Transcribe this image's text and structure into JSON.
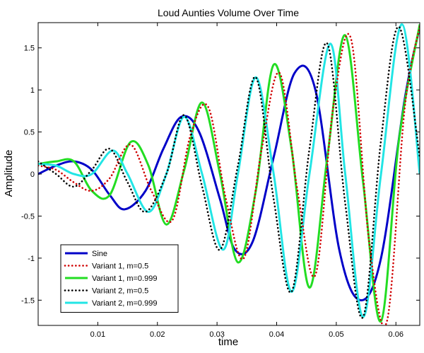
{
  "chart_data": {
    "type": "line",
    "title": "Loud Aunties Volume Over Time",
    "xlabel": "time",
    "ylabel": "Amplitude",
    "xlim": [
      0,
      0.064
    ],
    "ylim": [
      -1.8,
      1.8
    ],
    "xticks": [
      0.01,
      0.02,
      0.03,
      0.04,
      0.05,
      0.06
    ],
    "xtick_labels": [
      "0.01",
      "0.02",
      "0.03",
      "0.04",
      "0.05",
      "0.06"
    ],
    "yticks": [
      -1.5,
      -1,
      -0.5,
      0,
      0.5,
      1,
      1.5
    ],
    "ytick_labels": [
      "-1.5",
      "-1",
      "-0.5",
      "0",
      "0.5",
      "1",
      "1.5"
    ],
    "grid": false,
    "legend_position": "lower-left",
    "series": [
      {
        "name": "Sine",
        "color": "#0000c8",
        "style": "solid",
        "x": [
          0,
          0.003,
          0.006,
          0.009,
          0.012,
          0.0145,
          0.018,
          0.021,
          0.024,
          0.027,
          0.0305,
          0.033,
          0.036,
          0.0395,
          0.043,
          0.0465,
          0.0505,
          0.054,
          0.0575,
          0.0615,
          0.064
        ],
        "values": [
          0,
          0.1,
          0.15,
          0.05,
          -0.25,
          -0.42,
          -0.2,
          0.3,
          0.68,
          0.5,
          -0.3,
          -0.9,
          -0.8,
          0.2,
          1.2,
          1.0,
          -0.9,
          -1.5,
          -1.0,
          0.9,
          1.75
        ]
      },
      {
        "name": "Variant 1, m=0.5",
        "color": "#d00000",
        "style": "dotted",
        "x": [
          0,
          0.003,
          0.006,
          0.009,
          0.012,
          0.0155,
          0.019,
          0.0225,
          0.0255,
          0.0285,
          0.0315,
          0.0345,
          0.0375,
          0.0405,
          0.0435,
          0.0465,
          0.0495,
          0.0525,
          0.0555,
          0.0585,
          0.0615,
          0.064
        ],
        "values": [
          0.1,
          0.05,
          -0.1,
          -0.2,
          -0.05,
          0.35,
          -0.2,
          -0.55,
          0.45,
          0.8,
          -0.3,
          -1.0,
          0.3,
          1.2,
          -0.2,
          -1.2,
          0.8,
          1.6,
          -0.8,
          -1.75,
          0.8,
          1.75
        ]
      },
      {
        "name": "Variant 1, m=0.999",
        "color": "#22dd22",
        "style": "solid",
        "x": [
          0,
          0.003,
          0.006,
          0.009,
          0.012,
          0.0155,
          0.0185,
          0.0215,
          0.0245,
          0.0275,
          0.0305,
          0.0335,
          0.0365,
          0.0395,
          0.0425,
          0.0455,
          0.0485,
          0.0515,
          0.0545,
          0.0575,
          0.0605,
          0.064
        ],
        "values": [
          0.12,
          0.15,
          0.15,
          -0.2,
          -0.25,
          0.38,
          0.1,
          -0.6,
          0.05,
          0.85,
          0.0,
          -1.05,
          -0.2,
          1.3,
          0.3,
          -1.35,
          0.2,
          1.65,
          -0.1,
          -1.75,
          0.4,
          1.78
        ]
      },
      {
        "name": "Variant 2, m=0.5",
        "color": "#000000",
        "style": "dotted",
        "x": [
          0,
          0.003,
          0.006,
          0.009,
          0.012,
          0.015,
          0.018,
          0.0215,
          0.0245,
          0.0275,
          0.0305,
          0.0335,
          0.0365,
          0.0395,
          0.0425,
          0.0455,
          0.0485,
          0.0515,
          0.0545,
          0.0575,
          0.0605,
          0.064
        ],
        "values": [
          0.15,
          0.0,
          -0.15,
          0.05,
          0.3,
          -0.1,
          -0.45,
          0.0,
          0.7,
          -0.15,
          -0.9,
          0.1,
          1.15,
          -0.3,
          -1.4,
          0.3,
          1.55,
          -0.35,
          -1.7,
          0.4,
          1.75,
          0.2
        ]
      },
      {
        "name": "Variant 2, m=0.999",
        "color": "#22e5e5",
        "style": "solid",
        "x": [
          0,
          0.003,
          0.006,
          0.009,
          0.0125,
          0.015,
          0.0185,
          0.0215,
          0.0245,
          0.0275,
          0.031,
          0.0335,
          0.0365,
          0.0395,
          0.0425,
          0.0455,
          0.049,
          0.0515,
          0.0545,
          0.0575,
          0.061,
          0.064
        ],
        "values": [
          0.12,
          0.1,
          0.0,
          0.0,
          0.28,
          0.0,
          -0.45,
          0.0,
          0.68,
          0.0,
          -0.9,
          0.0,
          1.15,
          0.0,
          -1.4,
          0.0,
          1.55,
          0.0,
          -1.7,
          0.0,
          1.78,
          0.0
        ]
      }
    ]
  }
}
